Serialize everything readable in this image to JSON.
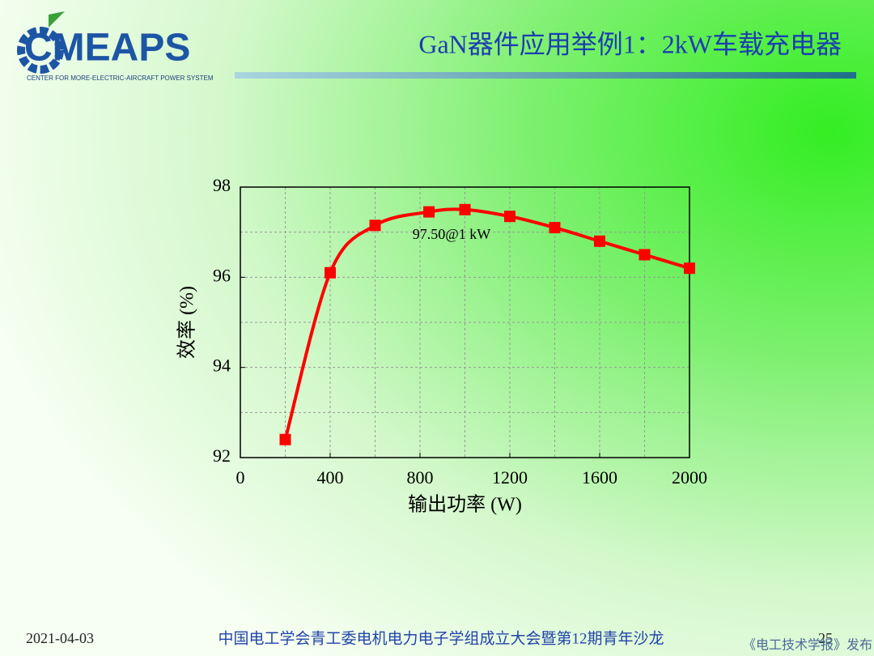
{
  "header": {
    "logo": "CMEAPS",
    "logo_subtitle": "CENTER FOR MORE-ELECTRIC-AIRCRAFT POWER SYSTEM",
    "title": "GaN器件应用举例1：2kW车载充电器"
  },
  "chart_data": {
    "type": "line",
    "x": [
      200,
      400,
      600,
      840,
      1000,
      1200,
      1400,
      1600,
      1800,
      2000
    ],
    "values": [
      92.4,
      96.1,
      97.15,
      97.45,
      97.5,
      97.35,
      97.1,
      96.8,
      96.5,
      96.2
    ],
    "color": "#ff0000",
    "annotation": "97.50@1 kW",
    "xlabel": "输出功率 (W)",
    "ylabel": "效率 (%)",
    "xlim": [
      0,
      2000
    ],
    "xticks": [
      0,
      400,
      800,
      1200,
      1600,
      2000
    ],
    "xminor": [
      200,
      600,
      1000,
      1400,
      1800
    ],
    "ylim": [
      92,
      98
    ],
    "yticks": [
      92,
      94,
      96,
      98
    ],
    "yminor": [
      93,
      95,
      97
    ],
    "grid": true
  },
  "footer": {
    "date": "2021-04-03",
    "event": "中国电工学会青工委电机电力电子学组成立大会暨第12期青年沙龙",
    "page": "25",
    "source": "《电工技术学报》发布"
  }
}
